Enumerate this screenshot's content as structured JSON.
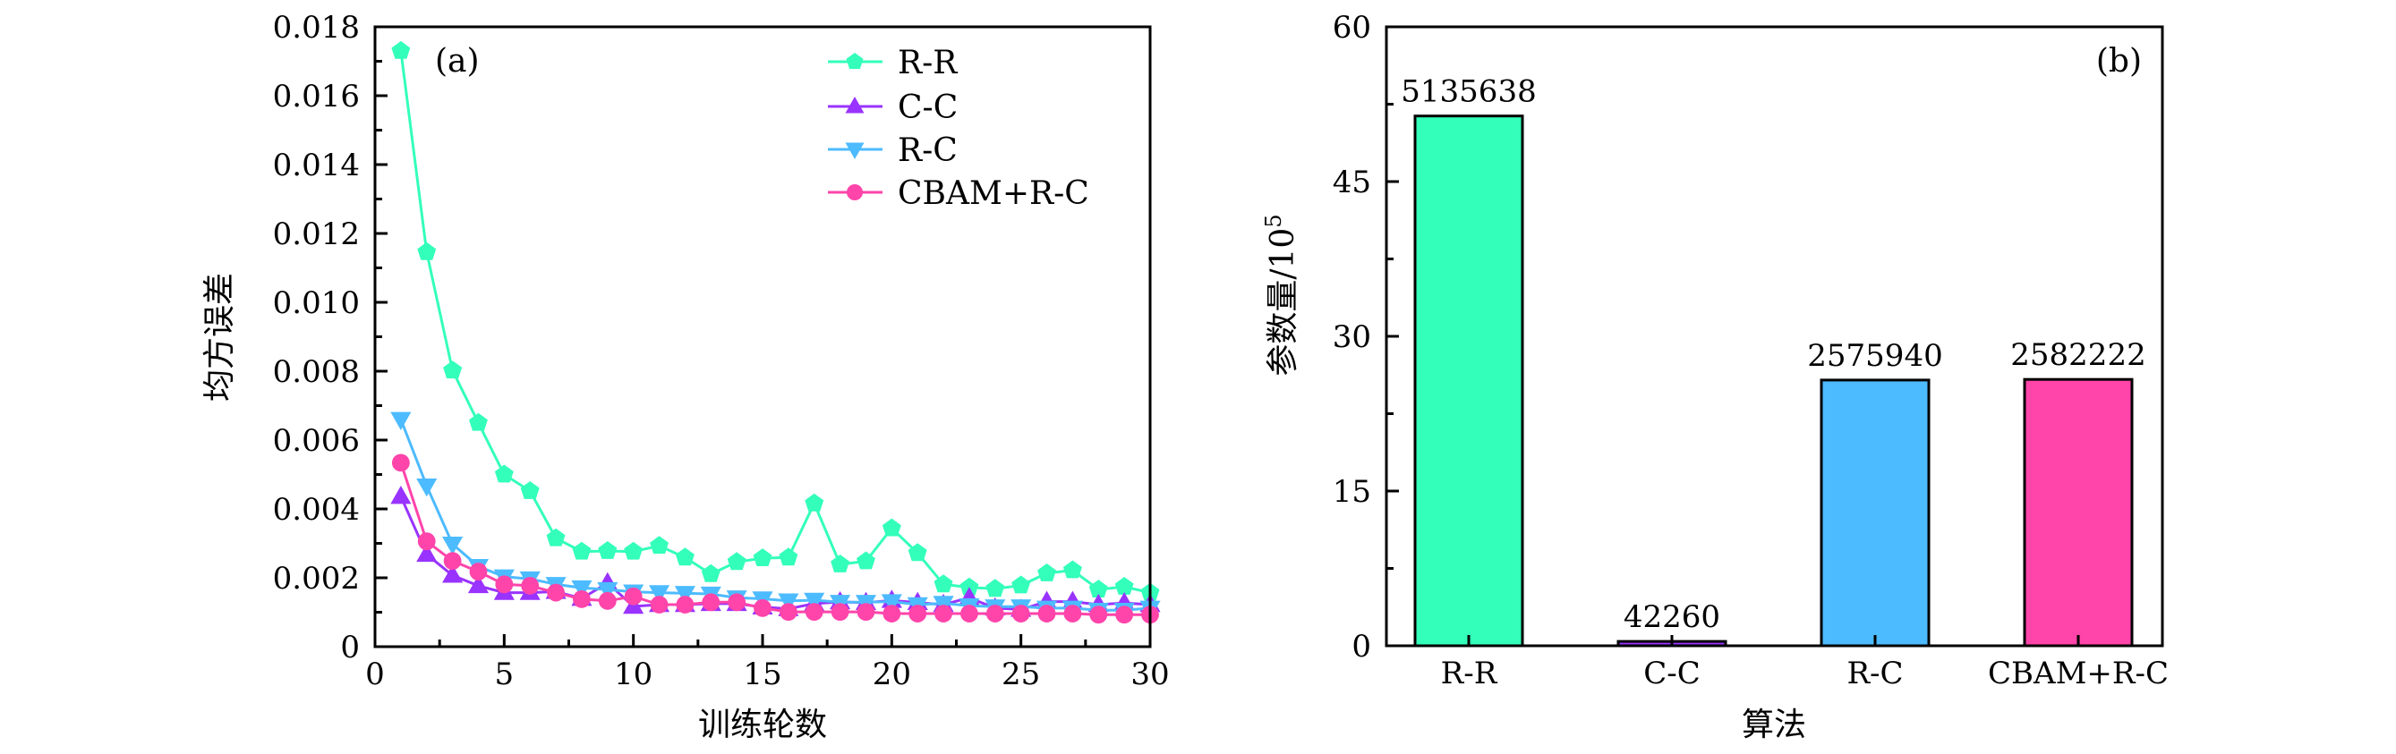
{
  "chart_data": [
    {
      "type": "line",
      "panel_label": "(a)",
      "xlabel": "训练轮数",
      "ylabel": "均方误差",
      "xlim": [
        0,
        30
      ],
      "ylim": [
        0,
        0.018
      ],
      "xticks": [
        "0",
        "5",
        "10",
        "15",
        "20",
        "25",
        "30"
      ],
      "xtick_values": [
        0,
        5,
        10,
        15,
        20,
        25,
        30
      ],
      "yticks": [
        "0",
        "0.002",
        "0.004",
        "0.006",
        "0.008",
        "0.010",
        "0.012",
        "0.014",
        "0.016",
        "0.018"
      ],
      "ytick_values": [
        0,
        0.002,
        0.004,
        0.006,
        0.008,
        0.01,
        0.012,
        0.014,
        0.016,
        0.018
      ],
      "grid": false,
      "legend_position": "top-right",
      "x": [
        1,
        2,
        3,
        4,
        5,
        6,
        7,
        8,
        9,
        10,
        11,
        12,
        13,
        14,
        15,
        16,
        17,
        18,
        19,
        20,
        21,
        22,
        23,
        24,
        25,
        26,
        27,
        28,
        29,
        30
      ],
      "series": [
        {
          "name": "R-R",
          "color": "#33ffbb",
          "marker": "pentagon",
          "values": [
            0.0173,
            0.01146,
            0.00802,
            0.0065,
            0.005,
            0.00452,
            0.00315,
            0.00276,
            0.00278,
            0.00276,
            0.00293,
            0.00259,
            0.00211,
            0.00246,
            0.00257,
            0.00259,
            0.00416,
            0.00239,
            0.00248,
            0.00344,
            0.00272,
            0.00181,
            0.00172,
            0.00168,
            0.00178,
            0.00213,
            0.00222,
            0.00166,
            0.00174,
            0.00157
          ]
        },
        {
          "name": "C-C",
          "color": "#9933ff",
          "marker": "triangle-up",
          "values": [
            0.00436,
            0.00268,
            0.00207,
            0.00177,
            0.00157,
            0.00157,
            0.0016,
            0.0014,
            0.00185,
            0.00117,
            0.00122,
            0.00122,
            0.00125,
            0.00125,
            0.00115,
            0.0011,
            0.00125,
            0.0013,
            0.00128,
            0.00134,
            0.00128,
            0.00122,
            0.00142,
            0.00112,
            0.00108,
            0.00131,
            0.00131,
            0.00122,
            0.00127,
            0.00122
          ]
        },
        {
          "name": "R-C",
          "color": "#4dbbff",
          "marker": "triangle-down",
          "values": [
            0.0066,
            0.00467,
            0.00298,
            0.00233,
            0.00203,
            0.00197,
            0.00181,
            0.00171,
            0.00166,
            0.00159,
            0.00157,
            0.00155,
            0.00153,
            0.00142,
            0.00139,
            0.00133,
            0.00135,
            0.00129,
            0.00129,
            0.00131,
            0.00122,
            0.00126,
            0.00119,
            0.00116,
            0.00116,
            0.00112,
            0.00112,
            0.00106,
            0.00106,
            0.00112
          ]
        },
        {
          "name": "CBAM+R-C",
          "color": "#ff44aa",
          "marker": "circle",
          "values": [
            0.00534,
            0.00306,
            0.00249,
            0.00218,
            0.00181,
            0.00177,
            0.00157,
            0.00138,
            0.00133,
            0.00146,
            0.00122,
            0.00122,
            0.00129,
            0.00129,
            0.00112,
            0.00101,
            0.00101,
            0.00101,
            0.00101,
            0.00096,
            0.00096,
            0.00096,
            0.00096,
            0.00096,
            0.00096,
            0.00096,
            0.00096,
            0.00093,
            0.00093,
            0.00093
          ]
        }
      ]
    },
    {
      "type": "bar",
      "panel_label": "(b)",
      "xlabel": "算法",
      "ylabel": "参数量/10",
      "ylabel_exponent": "5",
      "ylim": [
        0,
        60
      ],
      "yticks": [
        "0",
        "15",
        "30",
        "45",
        "60"
      ],
      "ytick_values": [
        0,
        15,
        30,
        45,
        60
      ],
      "grid": false,
      "categories": [
        "R-R",
        "C-C",
        "R-C",
        "CBAM+R-C"
      ],
      "values": [
        51.35638,
        0.4226,
        25.7594,
        25.82222
      ],
      "data_labels": [
        "5135638",
        "42260",
        "2575940",
        "2582222"
      ],
      "colors": [
        "#33ffbb",
        "#9933ff",
        "#4dbbff",
        "#ff44aa"
      ]
    }
  ]
}
